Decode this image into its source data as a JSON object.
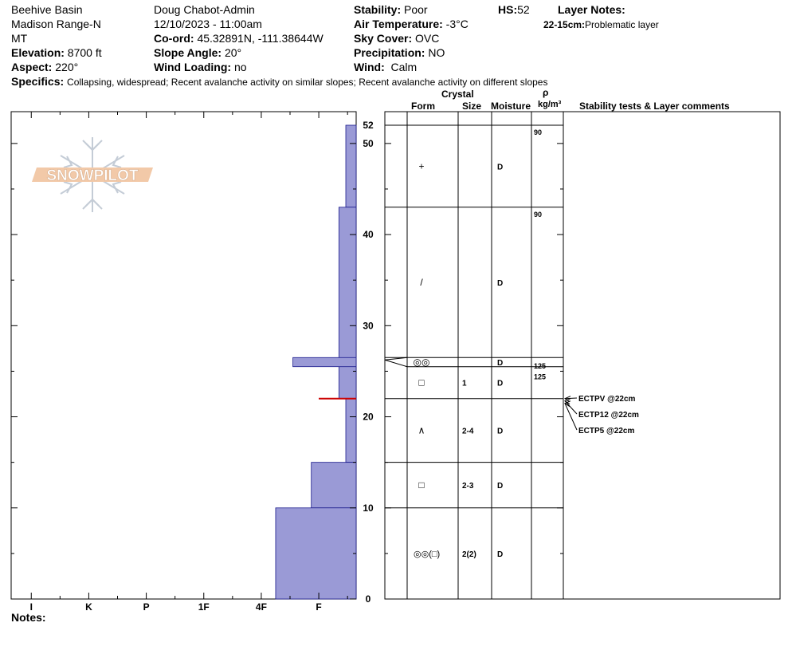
{
  "header": {
    "location": "Beehive Basin",
    "range": "Madison Range-N",
    "state": "MT",
    "elevation_label": "Elevation:",
    "elevation": "8700 ft",
    "aspect_label": "Aspect:",
    "aspect": "220°",
    "observer": "Doug Chabot-Admin",
    "datetime": "12/10/2023 - 11:00am",
    "coord_label": "Co-ord:",
    "coord": "45.32891N, -111.38644W",
    "slope_label": "Slope Angle:",
    "slope": "20°",
    "wind_loading_label": "Wind Loading:",
    "wind_loading": "no",
    "stability_label": "Stability:",
    "stability": "Poor",
    "air_temp_label": "Air Temperature:",
    "air_temp": "-3°C",
    "sky_label": "Sky Cover:",
    "sky": "OVC",
    "precip_label": "Precipitation:",
    "precip": "NO",
    "wind_label": "Wind:",
    "wind": "Calm",
    "hs_label": "HS:",
    "hs": "52",
    "layer_notes_label": "Layer Notes:",
    "layer_note_range": "22-15cm:",
    "layer_note_text": "Problematic layer",
    "specifics_label": "Specifics:",
    "specifics": "Collapsing, widespread; Recent avalanche activity on similar slopes; Recent avalanche activity on different slopes"
  },
  "notes_label": "Notes:",
  "logo_text": "SNOWPILOT",
  "table_headers": {
    "crystal": "Crystal",
    "form": "Form",
    "size": "Size",
    "moisture": "Moisture",
    "rho": "ρ",
    "density_unit": "kg/m³",
    "stability": "Stability tests & Layer comments"
  },
  "chart_data": {
    "type": "snow-profile",
    "hs_cm": 52,
    "y_axis": {
      "min": 0,
      "max": 52,
      "tick_labels": [
        "0",
        "10",
        "20",
        "30",
        "40",
        "50",
        "52"
      ]
    },
    "hardness_scale": [
      "I",
      "K",
      "P",
      "1F",
      "4F",
      "F"
    ],
    "hardness_layers": [
      {
        "bottom": 43,
        "top": 52,
        "hardness": 0.18
      },
      {
        "bottom": 22,
        "top": 43,
        "hardness": 0.3
      },
      {
        "bottom": 25.5,
        "top": 26.5,
        "hardness": 1.1
      },
      {
        "bottom": 15,
        "top": 22,
        "hardness": 0.18
      },
      {
        "bottom": 10,
        "top": 15,
        "hardness": 0.78
      },
      {
        "bottom": 0,
        "top": 10,
        "hardness": 1.4
      }
    ],
    "problem_layer_cm": 22,
    "layers": [
      {
        "bottom": 43,
        "top": 52,
        "form": "+",
        "size": "",
        "moisture": "D"
      },
      {
        "bottom": 26.5,
        "top": 43,
        "form": "/",
        "size": "",
        "moisture": "D"
      },
      {
        "bottom": 25.5,
        "top": 26.5,
        "form": "◎◎",
        "size": "",
        "moisture": "D"
      },
      {
        "bottom": 22,
        "top": 25.5,
        "form": "□",
        "size": "1",
        "moisture": "D"
      },
      {
        "bottom": 15,
        "top": 22,
        "form": "∧",
        "size": "2-4",
        "moisture": "D"
      },
      {
        "bottom": 10,
        "top": 15,
        "form": "□",
        "size": "2-3",
        "moisture": "D"
      },
      {
        "bottom": 0,
        "top": 10,
        "form": "◎◎(□)",
        "size": "2(2)",
        "moisture": "D"
      }
    ],
    "densities": [
      {
        "depth_cm": 52,
        "value": "90"
      },
      {
        "depth_cm": 43,
        "value": "90"
      },
      {
        "depth_cm": 26,
        "value": "125"
      },
      {
        "depth_cm": 25,
        "value": "125"
      }
    ],
    "stability_tests": [
      {
        "label": "ECTPV @22cm",
        "depth_cm": 22
      },
      {
        "label": "ECTP12 @22cm",
        "depth_cm": 22
      },
      {
        "label": "ECTP5 @22cm",
        "depth_cm": 22
      }
    ]
  }
}
